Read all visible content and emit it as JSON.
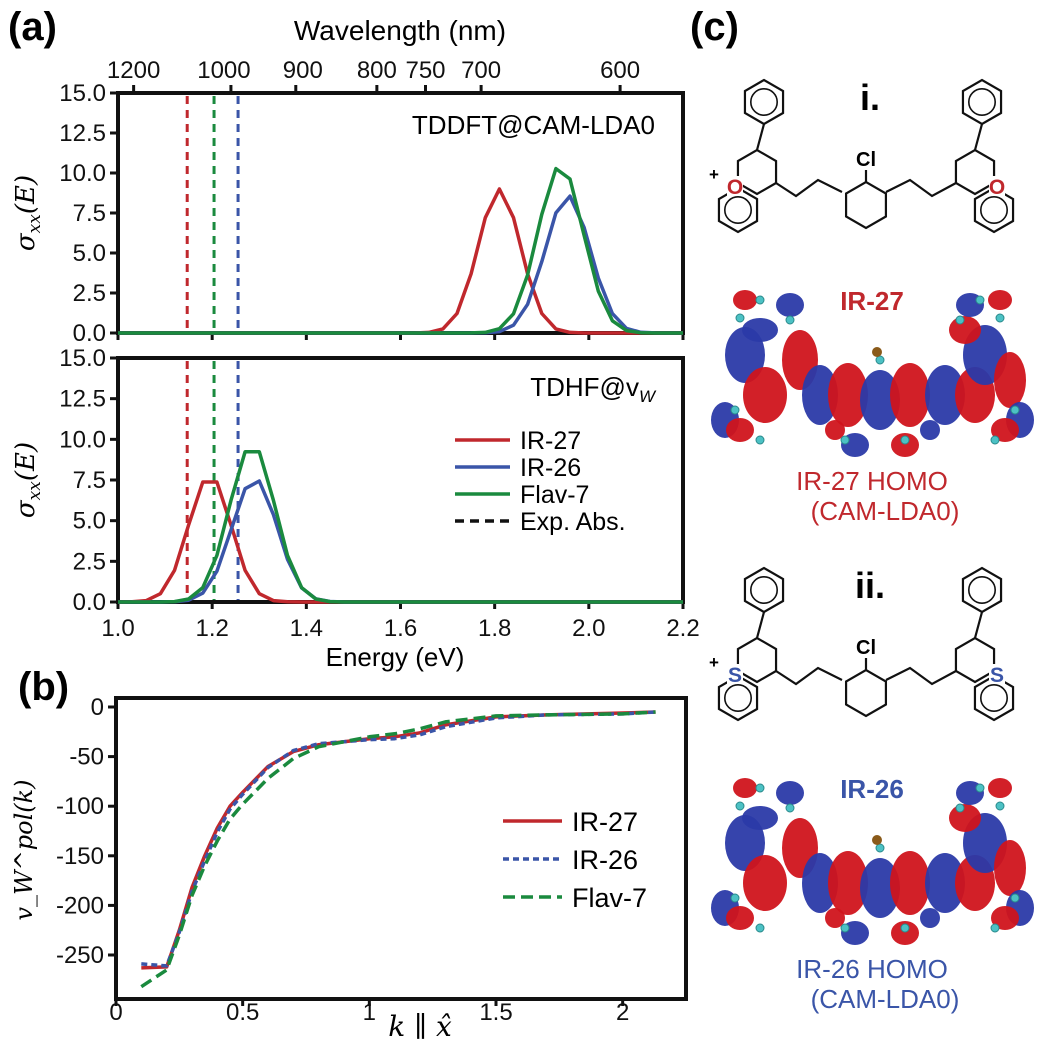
{
  "panel_labels": {
    "a": "(a)",
    "b": "(b)",
    "c": "(c)"
  },
  "colors": {
    "ir27": "#c0282d",
    "ir26": "#3a55a8",
    "flav7": "#1a8a3e",
    "exp": "#111111"
  },
  "chart_data": [
    {
      "id": "a-top",
      "type": "line",
      "title": "",
      "annotation": "TDDFT@CAM-LDA0",
      "xlabel_top": "Wavelength (nm)",
      "top_ticks_nm": [
        1200,
        1000,
        900,
        800,
        750,
        700,
        600
      ],
      "top_tick_labels": [
        "1200",
        "1000",
        "900",
        "800",
        "750",
        "700",
        "600"
      ],
      "ylabel": "σxx(E)",
      "xlim": [
        1.0,
        2.2
      ],
      "ylim": [
        0,
        15
      ],
      "yticks": [
        "0.0",
        "2.5",
        "5.0",
        "7.5",
        "10.0",
        "12.5",
        "15.0"
      ],
      "series": [
        {
          "name": "IR-27",
          "color": "#c0282d",
          "gaussian": {
            "center": 1.81,
            "height": 9.0,
            "sigma": 0.045
          }
        },
        {
          "name": "IR-26",
          "color": "#3a55a8",
          "gaussian": {
            "center": 1.955,
            "height": 8.6,
            "sigma": 0.048
          }
        },
        {
          "name": "Flav-7",
          "color": "#1a8a3e",
          "gaussian": {
            "center": 1.94,
            "height": 10.5,
            "sigma": 0.048
          }
        }
      ],
      "exp_abs_eV": {
        "IR-27": 1.147,
        "Flav-7": 1.204,
        "IR-26": 1.255
      }
    },
    {
      "id": "a-bottom",
      "type": "line",
      "annotation": "TDHF@v",
      "annotation_sub": "W",
      "xlabel": "Energy (eV)",
      "ylabel": "σxx(E)",
      "xlim": [
        1.0,
        2.2
      ],
      "ylim": [
        0,
        15
      ],
      "xticks": [
        "1.0",
        "1.2",
        "1.4",
        "1.6",
        "1.8",
        "2.0",
        "2.2"
      ],
      "yticks": [
        "0.0",
        "2.5",
        "5.0",
        "7.5",
        "10.0",
        "12.5",
        "15.0"
      ],
      "legend": {
        "placement": "center-right",
        "entries": [
          "IR-27",
          "IR-26",
          "Flav-7",
          "Exp. Abs."
        ]
      },
      "series": [
        {
          "name": "IR-27",
          "color": "#c0282d",
          "gaussian": {
            "center": 1.195,
            "height": 7.8,
            "sigma": 0.045
          }
        },
        {
          "name": "IR-26",
          "color": "#3a55a8",
          "gaussian": {
            "center": 1.29,
            "height": 7.6,
            "sigma": 0.048
          }
        },
        {
          "name": "Flav-7",
          "color": "#1a8a3e",
          "gaussian": {
            "center": 1.285,
            "height": 9.7,
            "sigma": 0.048
          }
        }
      ],
      "exp_abs_eV": {
        "IR-27": 1.147,
        "Flav-7": 1.204,
        "IR-26": 1.255
      }
    },
    {
      "id": "b",
      "type": "line",
      "xlabel": "k ∥ x̂",
      "ylabel": "v_W^pol(k)",
      "xlim": [
        0,
        2.25
      ],
      "ylim": [
        -288,
        8
      ],
      "xticks": [
        "0",
        "0.5",
        "1",
        "1.5",
        "2"
      ],
      "yticks": [
        "0",
        "-50",
        "-100",
        "-150",
        "-200",
        "-250"
      ],
      "legend": {
        "placement": "center-right",
        "entries": [
          "IR-27",
          "IR-26",
          "Flav-7"
        ]
      },
      "series": [
        {
          "name": "IR-27",
          "color": "#c0282d",
          "style": "solid",
          "x": [
            0.1,
            0.2,
            0.25,
            0.3,
            0.35,
            0.4,
            0.45,
            0.5,
            0.6,
            0.7,
            0.8,
            1.0,
            1.1,
            1.2,
            1.3,
            1.5,
            1.7,
            2.0,
            2.13
          ],
          "y": [
            -263,
            -262,
            -225,
            -182,
            -150,
            -122,
            -100,
            -86,
            -60,
            -45,
            -38,
            -32,
            -30,
            -26,
            -18,
            -10,
            -8,
            -6,
            -5
          ]
        },
        {
          "name": "IR-26",
          "color": "#3a55a8",
          "style": "dotted",
          "x": [
            0.1,
            0.2,
            0.25,
            0.3,
            0.35,
            0.4,
            0.45,
            0.5,
            0.6,
            0.7,
            0.8,
            1.0,
            1.1,
            1.2,
            1.3,
            1.5,
            1.7,
            2.0,
            2.13
          ],
          "y": [
            -259,
            -261,
            -227,
            -186,
            -155,
            -126,
            -103,
            -88,
            -61,
            -44,
            -37,
            -33,
            -32,
            -28,
            -20,
            -11,
            -8,
            -7,
            -5
          ]
        },
        {
          "name": "Flav-7",
          "color": "#1a8a3e",
          "style": "dashed",
          "x": [
            0.1,
            0.2,
            0.25,
            0.3,
            0.35,
            0.4,
            0.45,
            0.5,
            0.6,
            0.7,
            0.8,
            1.0,
            1.1,
            1.2,
            1.3,
            1.5,
            1.7,
            2.0,
            2.13
          ],
          "y": [
            -282,
            -265,
            -230,
            -190,
            -160,
            -135,
            -113,
            -98,
            -72,
            -52,
            -40,
            -30,
            -27,
            -22,
            -15,
            -9,
            -8,
            -7,
            -5
          ]
        }
      ]
    }
  ],
  "structures": {
    "i": {
      "label": "i.",
      "heteroatom": "O",
      "charge": "+",
      "substituent": "Cl",
      "name": "IR-27",
      "orbital": "IR-27 HOMO",
      "method": "(CAM-LDA0)"
    },
    "ii": {
      "label": "ii.",
      "heteroatom": "S",
      "charge": "+",
      "substituent": "Cl",
      "name": "IR-26",
      "orbital": "IR-26 HOMO",
      "method": "(CAM-LDA0)"
    }
  }
}
